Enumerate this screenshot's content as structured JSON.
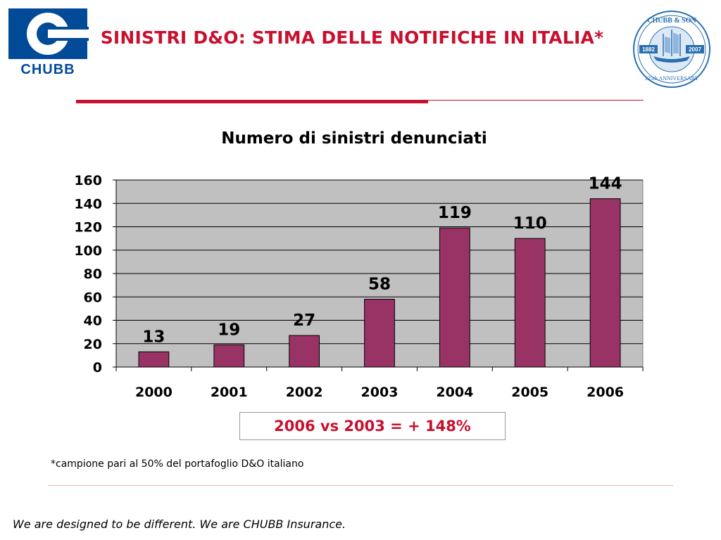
{
  "brand": {
    "logo_text": "CHUBB",
    "seal_text": "CHUBB & SON 1882 2007 125th ANNIVERSARY",
    "primary_color": "#004a98",
    "accent_color": "#c8102e"
  },
  "header": {
    "title": "SINISTRI D&O: STIMA DELLE NOTIFICHE IN ITALIA*"
  },
  "chart_data": {
    "type": "bar",
    "title": "Numero di sinistri denunciati",
    "xlabel": "",
    "ylabel": "",
    "categories": [
      "2000",
      "2001",
      "2002",
      "2003",
      "2004",
      "2005",
      "2006"
    ],
    "values": [
      13,
      19,
      27,
      58,
      119,
      110,
      144
    ],
    "data_labels": [
      "13",
      "19",
      "27",
      "58",
      "119",
      "110",
      "144"
    ],
    "ylim": [
      0,
      160
    ],
    "yticks": [
      0,
      20,
      40,
      60,
      80,
      100,
      120,
      140,
      160
    ],
    "grid": true,
    "legend": "none",
    "bar_color": "#993366",
    "plot_background": "#c0c0c0"
  },
  "callout": {
    "text": "2006 vs 2003 = + 148%"
  },
  "footnote": {
    "text": "*campione pari al 50% del portafoglio D&O italiano"
  },
  "footer": {
    "tagline": "We are designed to be different. We are CHUBB Insurance."
  }
}
